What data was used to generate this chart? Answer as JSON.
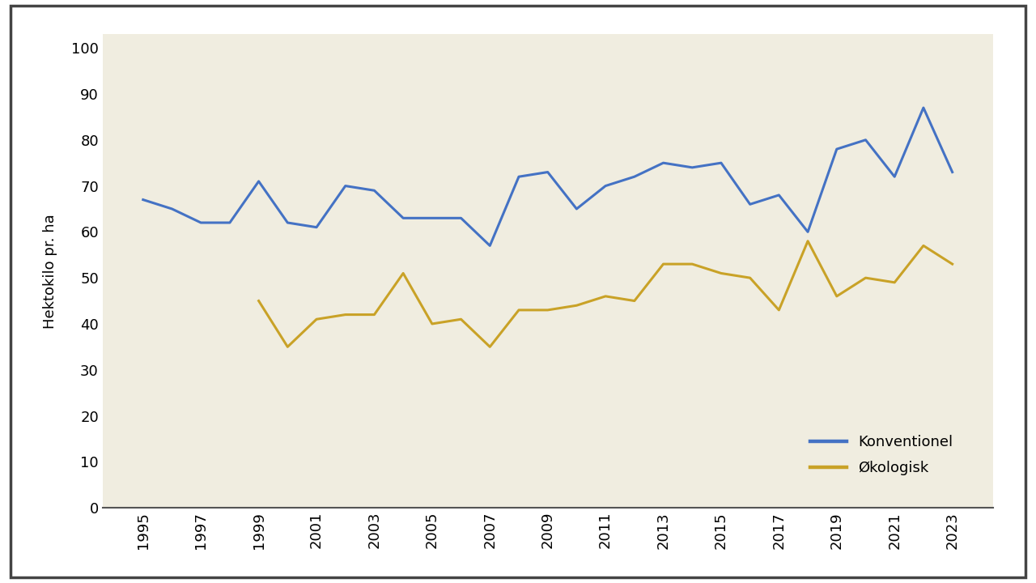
{
  "years": [
    1995,
    1996,
    1997,
    1998,
    1999,
    2000,
    2001,
    2002,
    2003,
    2004,
    2005,
    2006,
    2007,
    2008,
    2009,
    2010,
    2011,
    2012,
    2013,
    2014,
    2015,
    2016,
    2017,
    2018,
    2019,
    2020,
    2021,
    2022,
    2023
  ],
  "konventionel": [
    67,
    65,
    62,
    62,
    71,
    62,
    61,
    70,
    69,
    63,
    63,
    63,
    57,
    72,
    73,
    65,
    70,
    72,
    75,
    74,
    75,
    66,
    68,
    60,
    78,
    80,
    72,
    87,
    73
  ],
  "oekologisk": [
    null,
    null,
    null,
    null,
    45,
    35,
    41,
    42,
    42,
    51,
    40,
    41,
    35,
    43,
    43,
    44,
    46,
    45,
    53,
    53,
    51,
    50,
    43,
    58,
    46,
    50,
    49,
    57,
    53
  ],
  "konventionel_color": "#4472C4",
  "oekologisk_color": "#C9A227",
  "plot_bg_color": "#F0EDE0",
  "outer_bg_color": "#FFFFFF",
  "border_color": "#444444",
  "ylabel": "Hektokilo pr. ha",
  "yticks": [
    0,
    10,
    20,
    30,
    40,
    50,
    60,
    70,
    80,
    90,
    100
  ],
  "xticks": [
    1995,
    1997,
    1999,
    2001,
    2003,
    2005,
    2007,
    2009,
    2011,
    2013,
    2015,
    2017,
    2019,
    2021,
    2023
  ],
  "ylim": [
    0,
    103
  ],
  "legend_konventionel": "Konventionel",
  "legend_oekologisk": "Økologisk",
  "line_width": 2.2,
  "tick_fontsize": 13,
  "ylabel_fontsize": 13,
  "legend_fontsize": 13
}
